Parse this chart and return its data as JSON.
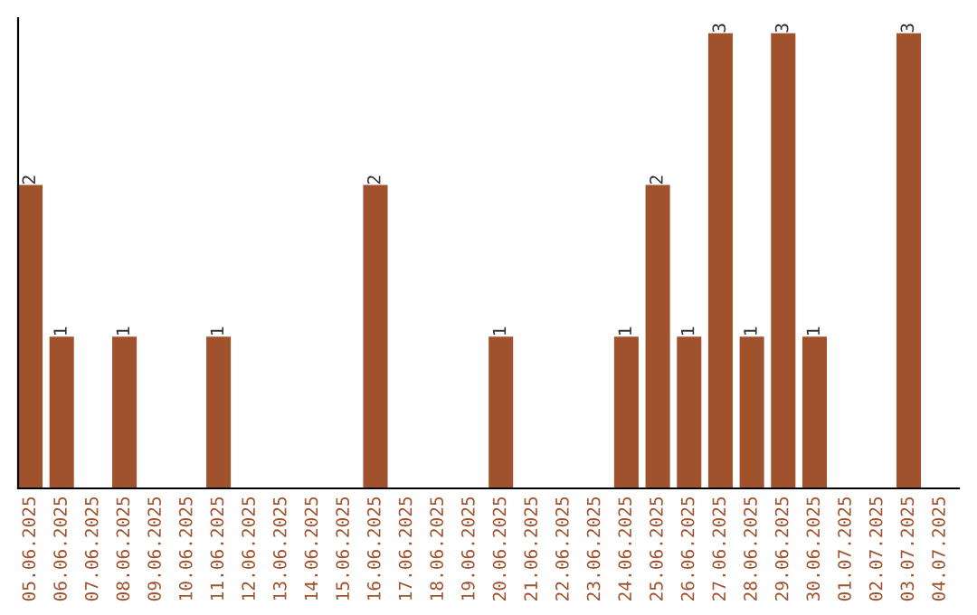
{
  "chart_data": {
    "type": "bar",
    "categories": [
      "05.06.2025",
      "06.06.2025",
      "07.06.2025",
      "08.06.2025",
      "09.06.2025",
      "10.06.2025",
      "11.06.2025",
      "12.06.2025",
      "13.06.2025",
      "14.06.2025",
      "15.06.2025",
      "16.06.2025",
      "17.06.2025",
      "18.06.2025",
      "19.06.2025",
      "20.06.2025",
      "21.06.2025",
      "22.06.2025",
      "23.06.2025",
      "24.06.2025",
      "25.06.2025",
      "26.06.2025",
      "27.06.2025",
      "28.06.2025",
      "29.06.2025",
      "30.06.2025",
      "01.07.2025",
      "02.07.2025",
      "03.07.2025",
      "04.07.2025"
    ],
    "values": [
      2,
      1,
      0,
      1,
      0,
      0,
      1,
      0,
      0,
      0,
      0,
      2,
      0,
      0,
      0,
      1,
      0,
      0,
      0,
      1,
      2,
      1,
      3,
      1,
      3,
      1,
      0,
      0,
      3,
      0
    ],
    "value_labels": [
      "2",
      "1",
      null,
      "1",
      null,
      null,
      "1",
      null,
      null,
      null,
      null,
      "2",
      null,
      null,
      null,
      "1",
      null,
      null,
      null,
      "1",
      "2",
      "1",
      "3",
      "1",
      "3",
      "1",
      null,
      null,
      "3",
      null
    ],
    "color": "#a0522d",
    "ylim": [
      0,
      3.1
    ],
    "tick_labels": "x",
    "grid": false,
    "legend": false
  }
}
